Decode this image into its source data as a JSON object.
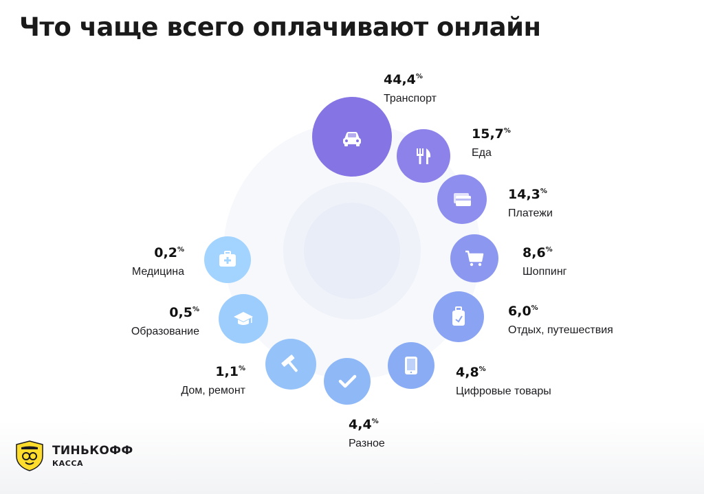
{
  "title": "Что чаще всего оплачивают онлайн",
  "colors": {
    "background": "#ffffff",
    "ring_outer": "#f5f7fc",
    "ring_inner": "#edf0f8",
    "bubble_purple": "#8b79e6",
    "bubble_blue": "#8ab6f6",
    "bubble_lightblue": "#a2d2ff",
    "logo_yellow": "#ffdd2d"
  },
  "chart_data": {
    "type": "bubble",
    "unit": "%",
    "items": [
      {
        "label": "Транспорт",
        "value": 44.4,
        "value_text": "44,4",
        "icon": "car-icon",
        "color": "#8474e4"
      },
      {
        "label": "Еда",
        "value": 15.7,
        "value_text": "15,7",
        "icon": "fork-knife-icon",
        "color": "#8d82ea"
      },
      {
        "label": "Платежи",
        "value": 14.3,
        "value_text": "14,3",
        "icon": "card-icon",
        "color": "#8e8eee"
      },
      {
        "label": "Шоппинг",
        "value": 8.6,
        "value_text": "8,6",
        "icon": "cart-icon",
        "color": "#8c98f0"
      },
      {
        "label": "Отдых, путешествия",
        "value": 6.0,
        "value_text": "6,0",
        "icon": "luggage-icon",
        "color": "#8aa3f2"
      },
      {
        "label": "Цифровые товары",
        "value": 4.8,
        "value_text": "4,8",
        "icon": "tablet-icon",
        "color": "#89acf4"
      },
      {
        "label": "Разное",
        "value": 4.4,
        "value_text": "4,4",
        "icon": "check-icon",
        "color": "#8fb8f7"
      },
      {
        "label": "Дом, ремонт",
        "value": 1.1,
        "value_text": "1,1",
        "icon": "hammer-icon",
        "color": "#95c3f9"
      },
      {
        "label": "Образование",
        "value": 0.5,
        "value_text": "0,5",
        "icon": "graduation-cap-icon",
        "color": "#9ccdfc"
      },
      {
        "label": "Медицина",
        "value": 0.2,
        "value_text": "0,2",
        "icon": "first-aid-kit-icon",
        "color": "#a2d4ff"
      }
    ]
  },
  "logo": {
    "name": "ТИНЬКОФФ",
    "sub": "КАССА",
    "icon": "tinkoff-shield-icon"
  }
}
